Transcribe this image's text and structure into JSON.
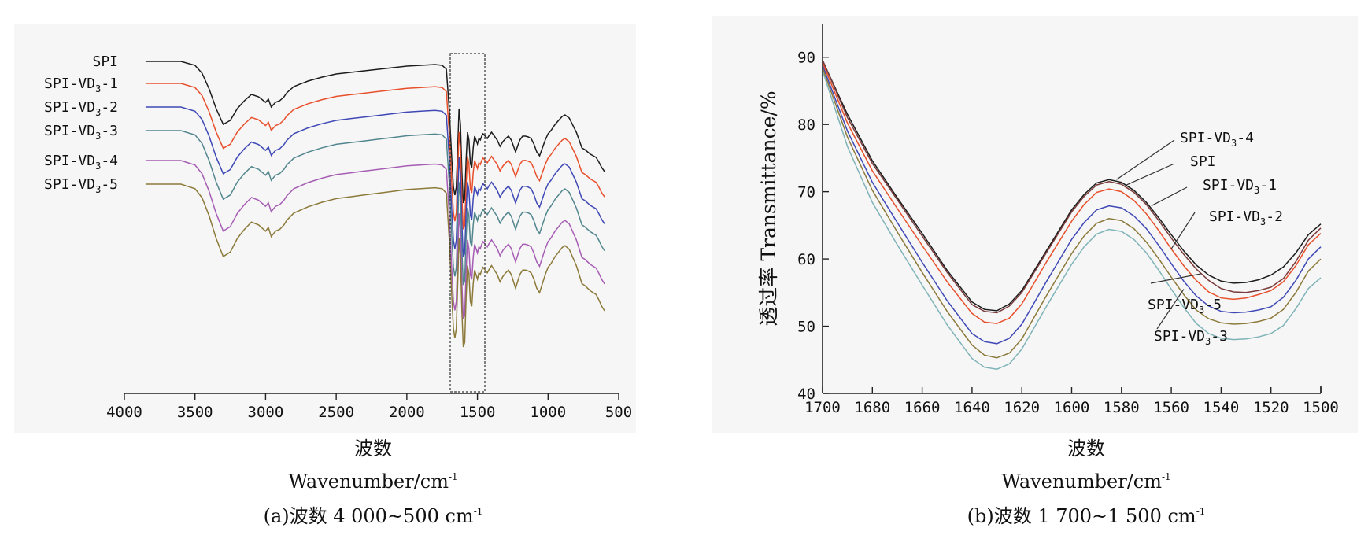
{
  "figure": {
    "panel_a": {
      "xlabel_cn": "波数",
      "xlabel_en": "Wavenumber/cm",
      "xlabel_sup": "-1",
      "caption_prefix": "(a)波数 4 000~500 cm",
      "caption_sup": "-1"
    },
    "panel_b": {
      "ylabel": "透过率 Transmittance/%",
      "xlabel_cn": "波数",
      "xlabel_en": "Wavenumber/cm",
      "xlabel_sup": "-1",
      "caption_prefix": "(b)波数 1 700~1 500 cm",
      "caption_sup": "-1"
    }
  },
  "chart_data": [
    {
      "type": "line",
      "panel": "a",
      "xlim": [
        4000,
        500
      ],
      "x_ticks": [
        4000,
        3500,
        3000,
        2500,
        2000,
        1500,
        1000,
        500
      ],
      "x_range_data": [
        3700,
        600
      ],
      "highlight_range": [
        1700,
        1500
      ],
      "y_axis": "none (spectra vertically offset)",
      "grid": false,
      "legend": "left, labels at start of each curve",
      "series": [
        {
          "name": "SPI",
          "label_parts": [
            "SPI",
            "",
            ""
          ],
          "color": "#1c1c1c",
          "offset": 0
        },
        {
          "name": "SPI-VD3-1",
          "label_parts": [
            "SPI-VD",
            "3",
            "-1"
          ],
          "color": "#e8502c",
          "offset": 1
        },
        {
          "name": "SPI-VD3-2",
          "label_parts": [
            "SPI-VD",
            "3",
            "-2"
          ],
          "color": "#3f49b6",
          "offset": 2
        },
        {
          "name": "SPI-VD3-3",
          "label_parts": [
            "SPI-VD",
            "3",
            "-3"
          ],
          "color": "#52868e",
          "offset": 3
        },
        {
          "name": "SPI-VD3-4",
          "label_parts": [
            "SPI-VD",
            "3",
            "-4"
          ],
          "color": "#a65db4",
          "offset": 4
        },
        {
          "name": "SPI-VD3-5",
          "label_parts": [
            "SPI-VD",
            "3",
            "-5"
          ],
          "color": "#8c7a3a",
          "offset": 5
        }
      ],
      "profile": {
        "x": [
          3700,
          3600,
          3500,
          3450,
          3400,
          3350,
          3300,
          3250,
          3200,
          3150,
          3100,
          3050,
          3000,
          2980,
          2960,
          2930,
          2900,
          2870,
          2850,
          2800,
          2700,
          2600,
          2500,
          2400,
          2300,
          2200,
          2100,
          2000,
          1900,
          1800,
          1750,
          1720,
          1700,
          1690,
          1680,
          1670,
          1660,
          1650,
          1640,
          1630,
          1620,
          1610,
          1600,
          1590,
          1580,
          1570,
          1560,
          1550,
          1540,
          1530,
          1520,
          1510,
          1500,
          1490,
          1480,
          1470,
          1460,
          1450,
          1440,
          1430,
          1420,
          1400,
          1380,
          1360,
          1340,
          1320,
          1300,
          1280,
          1260,
          1240,
          1230,
          1220,
          1200,
          1180,
          1160,
          1140,
          1120,
          1100,
          1080,
          1060,
          1040,
          1020,
          1000,
          980,
          950,
          900,
          880,
          850,
          800,
          780,
          760,
          740,
          720,
          700,
          680,
          660,
          640,
          620,
          600
        ],
        "y": [
          0,
          0,
          -5,
          -15,
          -35,
          -60,
          -80,
          -75,
          -60,
          -50,
          -42,
          -45,
          -52,
          -48,
          -58,
          -52,
          -50,
          -45,
          -40,
          -32,
          -25,
          -20,
          -16,
          -14,
          -12,
          -10,
          -8,
          -6,
          -5,
          -4,
          -5,
          -10,
          -60,
          -95,
          -130,
          -160,
          -170,
          -160,
          -110,
          -60,
          -80,
          -140,
          -180,
          -175,
          -125,
          -90,
          -100,
          -130,
          -135,
          -110,
          -95,
          -100,
          -105,
          -98,
          -100,
          -95,
          -92,
          -94,
          -96,
          -98,
          -95,
          -90,
          -95,
          -100,
          -108,
          -102,
          -98,
          -95,
          -100,
          -110,
          -115,
          -110,
          -100,
          -95,
          -95,
          -96,
          -98,
          -105,
          -115,
          -120,
          -110,
          -100,
          -92,
          -88,
          -80,
          -70,
          -68,
          -72,
          -90,
          -100,
          -110,
          -112,
          -115,
          -118,
          -120,
          -122,
          -128,
          -135,
          -140
        ]
      }
    },
    {
      "type": "line",
      "panel": "b",
      "xlim": [
        1700,
        1500
      ],
      "ylim": [
        40,
        95
      ],
      "x_ticks": [
        1700,
        1680,
        1660,
        1640,
        1620,
        1600,
        1580,
        1560,
        1540,
        1520,
        1500
      ],
      "y_ticks": [
        40,
        50,
        60,
        70,
        80,
        90
      ],
      "ylabel": "透过率 Transmittance/%",
      "xlabel": "Wavenumber/cm-1",
      "grid": false,
      "legend": "annotations with leader arrows to curves",
      "x": [
        1700,
        1690,
        1680,
        1670,
        1660,
        1650,
        1640,
        1635,
        1630,
        1625,
        1620,
        1610,
        1600,
        1595,
        1590,
        1585,
        1580,
        1575,
        1570,
        1565,
        1560,
        1555,
        1550,
        1545,
        1540,
        1535,
        1530,
        1525,
        1520,
        1515,
        1510,
        1505,
        1500
      ],
      "series": [
        {
          "name": "SPI-VD3-4",
          "label_parts": [
            "SPI-VD",
            "3",
            "-4"
          ],
          "color": "#1c1c1c",
          "y": [
            89.5,
            81.5,
            74.6,
            69.1,
            63.8,
            58.3,
            53.6,
            52.5,
            52.3,
            53.3,
            55.3,
            61.3,
            67.3,
            69.6,
            71.3,
            71.8,
            71.4,
            70.2,
            68.4,
            66.1,
            63.6,
            61.2,
            59.1,
            57.6,
            56.7,
            56.4,
            56.5,
            56.9,
            57.6,
            58.8,
            60.9,
            63.6,
            65.2
          ]
        },
        {
          "name": "SPI",
          "label_parts": [
            "SPI",
            "",
            ""
          ],
          "color": "#7a3a3a",
          "y": [
            89.6,
            81.0,
            74.2,
            68.8,
            63.4,
            58.0,
            53.2,
            52.2,
            52.0,
            53.0,
            55.0,
            61.0,
            67.0,
            69.3,
            71.0,
            71.5,
            71.1,
            69.9,
            68.1,
            65.7,
            63.1,
            60.7,
            58.5,
            56.8,
            55.6,
            55.1,
            55.0,
            55.3,
            55.8,
            57.1,
            59.6,
            62.8,
            64.6
          ]
        },
        {
          "name": "SPI-VD3-1",
          "label_parts": [
            "SPI-VD",
            "3",
            "-1"
          ],
          "color": "#e8502c",
          "y": [
            89.2,
            80.2,
            73.1,
            67.5,
            62.0,
            56.6,
            51.9,
            50.6,
            50.4,
            51.2,
            53.3,
            59.6,
            65.6,
            68.1,
            69.9,
            70.4,
            70.0,
            68.7,
            66.7,
            64.2,
            61.5,
            59.0,
            56.8,
            55.1,
            54.2,
            54.0,
            54.2,
            54.7,
            55.3,
            56.6,
            59.0,
            62.1,
            63.8
          ]
        },
        {
          "name": "SPI-VD3-2",
          "label_parts": [
            "SPI-VD",
            "3",
            "-2"
          ],
          "color": "#3f49b6",
          "y": [
            88.8,
            79.0,
            71.4,
            65.4,
            59.5,
            53.8,
            48.9,
            47.7,
            47.4,
            48.2,
            50.3,
            56.7,
            62.9,
            65.4,
            67.3,
            67.9,
            67.6,
            66.4,
            64.5,
            62.0,
            59.3,
            56.7,
            54.5,
            53.0,
            52.2,
            52.0,
            52.1,
            52.4,
            52.9,
            54.3,
            56.8,
            60.0,
            61.8
          ]
        },
        {
          "name": "SPI-VD3-5",
          "label_parts": [
            "SPI-VD",
            "3",
            "-5"
          ],
          "color": "#8c7a3a",
          "y": [
            88.4,
            78.1,
            70.2,
            64.0,
            58.0,
            52.2,
            47.2,
            45.7,
            45.3,
            46.0,
            48.1,
            54.6,
            60.8,
            63.4,
            65.3,
            66.0,
            65.7,
            64.5,
            62.5,
            60.0,
            57.3,
            54.7,
            52.4,
            51.1,
            50.5,
            50.3,
            50.4,
            50.7,
            51.2,
            52.5,
            55.0,
            58.2,
            60.0
          ]
        },
        {
          "name": "SPI-VD3-3",
          "label_parts": [
            "SPI-VD",
            "3",
            "-3"
          ],
          "color": "#7fb3b8",
          "y": [
            88.0,
            76.7,
            68.4,
            62.1,
            56.1,
            50.2,
            45.2,
            43.9,
            43.6,
            44.4,
            46.6,
            53.0,
            59.2,
            61.8,
            63.7,
            64.4,
            64.1,
            62.9,
            60.9,
            58.3,
            55.5,
            52.8,
            50.4,
            48.9,
            48.2,
            48.0,
            48.1,
            48.4,
            48.9,
            50.1,
            52.6,
            55.6,
            57.2
          ]
        }
      ]
    }
  ]
}
